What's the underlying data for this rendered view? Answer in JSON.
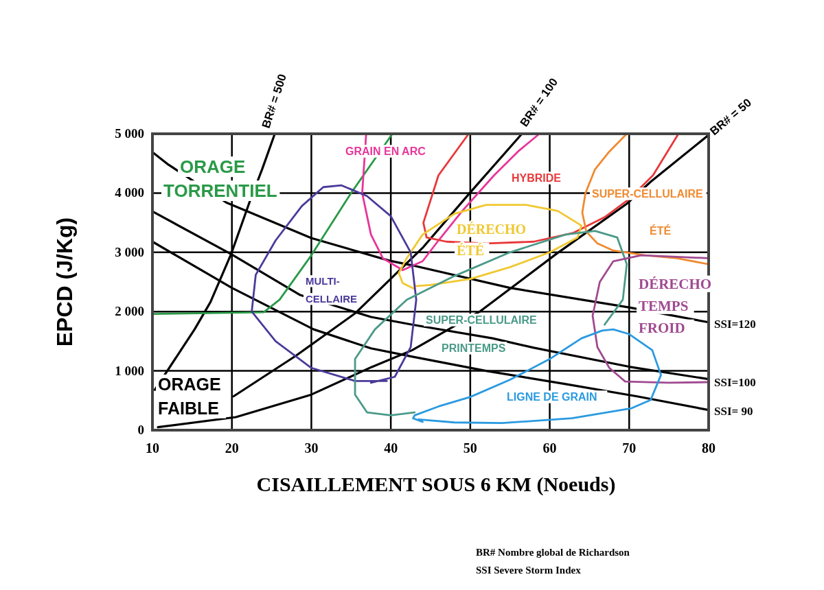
{
  "chart_data": {
    "type": "line",
    "xlabel": "CISAILLEMENT SOUS 6 KM (Noeuds)",
    "ylabel": "EPCD (J/Kg)",
    "xlim": [
      10,
      80
    ],
    "xticks": [
      10,
      20,
      30,
      40,
      50,
      60,
      70,
      80
    ],
    "ylim": [
      0,
      5000
    ],
    "yticks": [
      0,
      {
        "value": 1000,
        "label": "1 000"
      },
      {
        "value": 2000,
        "label": "2 000"
      },
      {
        "value": 3000,
        "label": "3 000"
      },
      {
        "value": 4000,
        "label": "4 000"
      },
      {
        "value": 5000,
        "label": "5 000"
      }
    ],
    "grid": true,
    "marker": "none",
    "line_style": "solid",
    "series": [
      {
        "name": "BR# = 500",
        "color": "#000000",
        "x": [
          10.3,
          15.3,
          17.3,
          19.9,
          22.2,
          23.8,
          25.4
        ],
        "values": [
          680,
          1700,
          2160,
          2970,
          3840,
          4400,
          5000
        ]
      },
      {
        "name": "BR# = 100",
        "color": "#000000",
        "x": [
          20.2,
          28,
          35.5,
          44.1,
          49.8,
          56.5
        ],
        "values": [
          570,
          1250,
          1970,
          3090,
          3980,
          5000
        ]
      },
      {
        "name": "BR# = 50",
        "color": "#000000",
        "x": [
          10.7,
          20.5,
          30,
          37.5,
          42.7,
          51.3,
          60.8,
          69.7,
          72.7,
          80
        ],
        "values": [
          50,
          220,
          600,
          1060,
          1350,
          2010,
          2970,
          3820,
          4190,
          4980
        ]
      },
      {
        "name": "SSI=120",
        "color": "#000000",
        "x": [
          10,
          12,
          19.3,
          30,
          39.8,
          42.7,
          55,
          70,
          80
        ],
        "values": [
          4690,
          4480,
          3840,
          3240,
          2860,
          2780,
          2400,
          2070,
          1820
        ]
      },
      {
        "name": "SSI=100",
        "color": "#000000",
        "x": [
          10,
          19.9,
          28.6,
          37.5,
          42.7,
          52.8,
          58,
          70,
          80
        ],
        "values": [
          3690,
          2970,
          2280,
          1910,
          1780,
          1550,
          1390,
          1070,
          860
        ]
      },
      {
        "name": "SSI= 90",
        "color": "#000000",
        "x": [
          10,
          20,
          30.3,
          37.5,
          42.7,
          52,
          61.9,
          71,
          80
        ],
        "values": [
          3180,
          2400,
          1700,
          1380,
          1240,
          1000,
          780,
          570,
          340
        ]
      },
      {
        "name": "ORAGE TORRENTIEL",
        "color": "#2a9a48",
        "x": [
          10,
          24,
          26,
          30,
          35,
          40.2
        ],
        "values": [
          1960,
          1990,
          2200,
          2950,
          4000,
          5000
        ]
      },
      {
        "name": "GRAIN EN ARC",
        "color": "#e8359a",
        "x": [
          36.9,
          36.4,
          37.5,
          39,
          41.5,
          44,
          46,
          49,
          53,
          56,
          58.7
        ],
        "values": [
          5000,
          4000,
          3300,
          2900,
          2700,
          2850,
          3200,
          3700,
          4300,
          4700,
          5000
        ]
      },
      {
        "name": "HYBRIDE",
        "color": "#e8383a",
        "x": [
          49.8,
          46,
          44.1,
          44.5,
          47,
          52,
          58,
          63,
          67,
          70,
          73,
          76.2
        ],
        "values": [
          5000,
          4300,
          3500,
          3250,
          3180,
          3150,
          3180,
          3330,
          3600,
          3900,
          4300,
          5000
        ]
      },
      {
        "name": "SUPER-CELLULAIRE ÉTÉ",
        "color": "#f08a30",
        "x": [
          69.7,
          67.5,
          65.7,
          64.5,
          64.1,
          64.6,
          66,
          68,
          72,
          76,
          80
        ],
        "values": [
          5000,
          4700,
          4400,
          4000,
          3670,
          3350,
          3150,
          3030,
          2950,
          2900,
          2800
        ]
      },
      {
        "name": "DÉRECHO ÉTÉ",
        "color": "#f0c830",
        "x": [
          43,
          45,
          50,
          55,
          60,
          63.5,
          64,
          61,
          57,
          52,
          48,
          44,
          42,
          41,
          41.5,
          43
        ],
        "values": [
          2430,
          2450,
          2550,
          2750,
          3000,
          3250,
          3450,
          3700,
          3800,
          3800,
          3650,
          3300,
          2900,
          2650,
          2480,
          2380
        ]
      },
      {
        "name": "MULTI-CELLAIRE",
        "color": "#4b3a9a",
        "x": [
          39.5,
          35.5,
          30,
          25.5,
          22.5,
          23,
          25.5,
          28.8,
          31.5,
          33.8,
          37,
          40,
          42.5,
          43.2,
          42.5,
          40.5,
          37.5
        ],
        "values": [
          830,
          830,
          1050,
          1500,
          2000,
          2620,
          3200,
          3780,
          4100,
          4130,
          3950,
          3610,
          3000,
          2200,
          1400,
          900,
          800
        ]
      },
      {
        "name": "SUPER-CELLULAIRE PRINTEMPS",
        "color": "#4a9a88",
        "x": [
          66.9,
          69.2,
          69.7,
          68.5,
          65.7,
          62,
          55,
          48,
          42,
          38,
          35.5,
          35.5,
          37,
          40,
          43
        ],
        "values": [
          1780,
          2200,
          2800,
          3250,
          3360,
          3300,
          3000,
          2600,
          2200,
          1700,
          1200,
          600,
          300,
          250,
          300
        ]
      },
      {
        "name": "DÉRECHO TEMPS FROID",
        "color": "#a04a90",
        "x": [
          80,
          75,
          71.5,
          68,
          66.3,
          65.4,
          66,
          67.5,
          69.5,
          75,
          80
        ],
        "values": [
          2900,
          2930,
          2950,
          2850,
          2500,
          1930,
          1400,
          1050,
          820,
          800,
          810
        ]
      },
      {
        "name": "LIGNE DE GRAIN",
        "color": "#2a9ae0",
        "x": [
          43.5,
          48,
          54,
          62.8,
          70.3,
          72.7,
          74,
          72.9,
          70,
          68,
          66.6,
          64,
          60,
          55,
          50,
          46,
          43,
          42.8,
          44
        ],
        "values": [
          180,
          130,
          120,
          200,
          370,
          510,
          930,
          1350,
          1620,
          1700,
          1680,
          1550,
          1200,
          850,
          560,
          400,
          250,
          200,
          140
        ]
      }
    ],
    "annotations": [
      "ORAGE FAIBLE",
      "BR# Nombre global de Richardson",
      "SSI  Severe Storm Index"
    ]
  }
}
